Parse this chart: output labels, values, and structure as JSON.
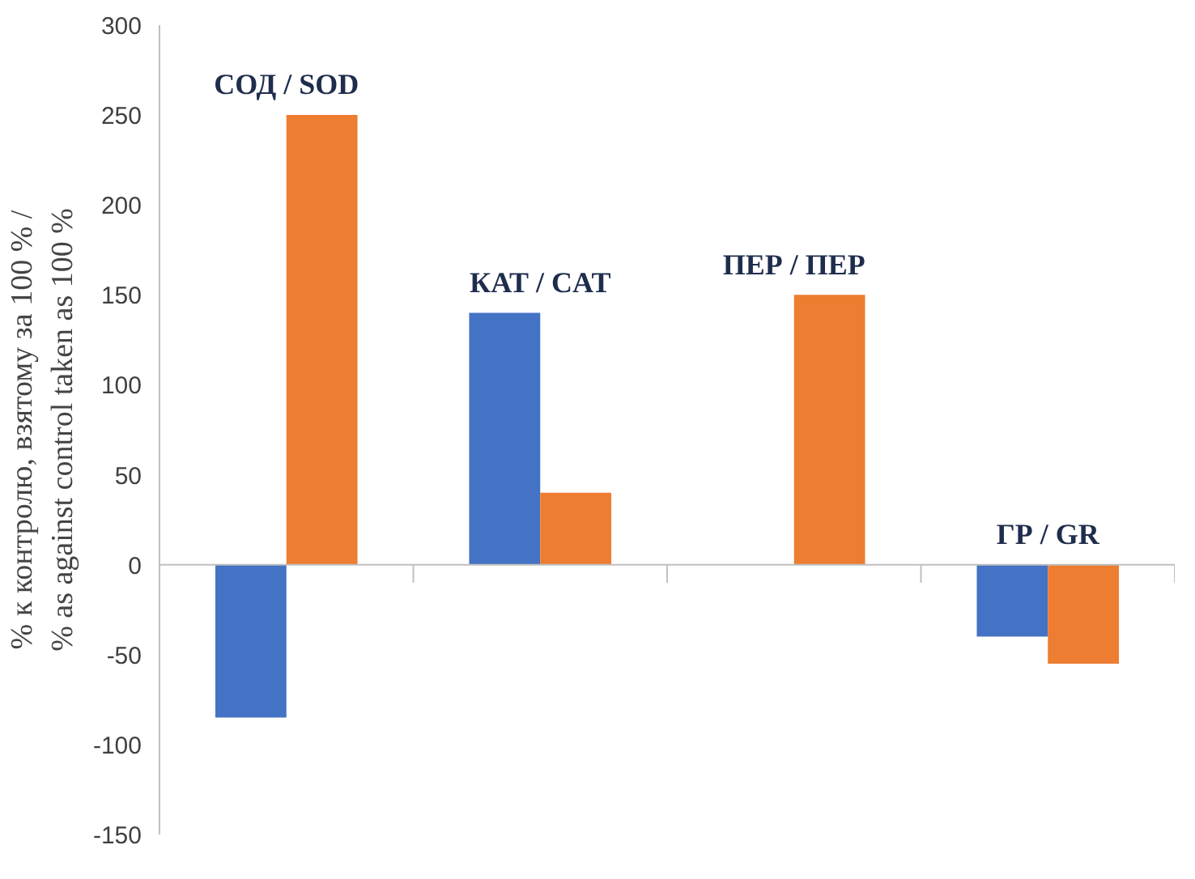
{
  "chart_data": {
    "type": "bar",
    "ylabel": "% к контролю, взятому за 100 % /\n% as against control taken as 100 %",
    "categories": [
      "СОД / SOD",
      "КАТ / CAT",
      "ПЕР / ПЕР",
      "ГР / GR"
    ],
    "series": [
      {
        "color": "#4472c4",
        "values": [
          -85,
          140,
          null,
          -40
        ]
      },
      {
        "color": "#ed7d31",
        "values": [
          250,
          40,
          150,
          -55
        ]
      }
    ],
    "ylim": [
      -150,
      300
    ],
    "yticks": [
      -150,
      -100,
      -50,
      0,
      50,
      100,
      150,
      200,
      250,
      300
    ],
    "ref_lines": [
      {
        "axis": "y",
        "value": 0,
        "color": "#bfbfbf"
      }
    ],
    "grid": false
  }
}
